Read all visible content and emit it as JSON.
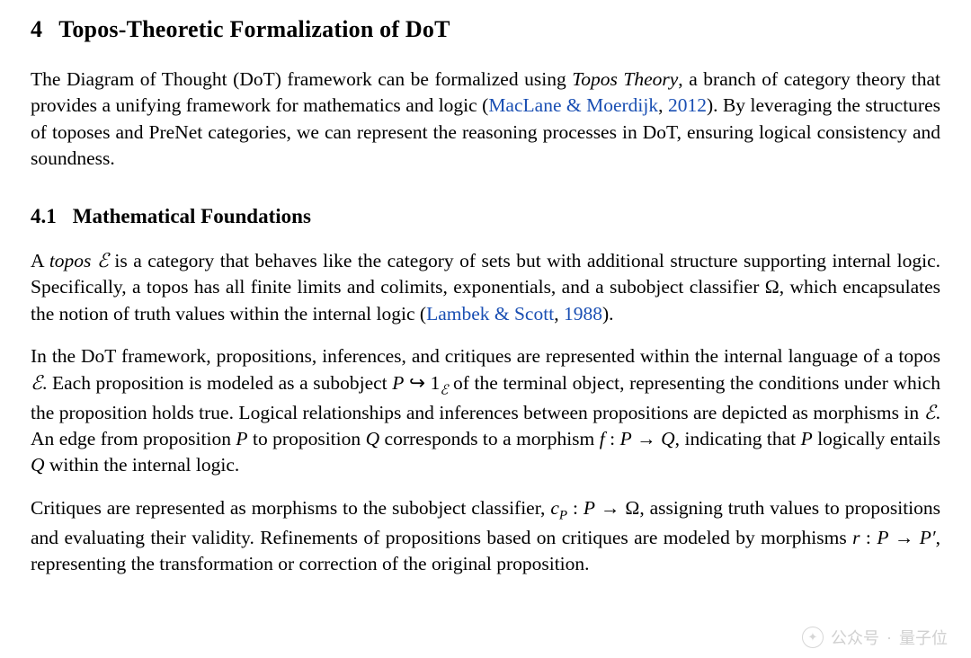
{
  "colors": {
    "text": "#000000",
    "link": "#1a4fb3",
    "background": "#ffffff",
    "watermark": "#c8c8c8"
  },
  "typography": {
    "body_font": "Times New Roman, serif",
    "body_fontsize_pt": 16,
    "heading_fontsize_pt": 19,
    "subheading_fontsize_pt": 17,
    "line_height": 1.37,
    "alignment": "justify"
  },
  "section": {
    "number": "4",
    "title": "Topos-Theoretic Formalization of DoT"
  },
  "intro_paragraph": {
    "run1": "The Diagram of Thought (DoT) framework can be formalized using ",
    "topos_theory_ital": "Topos Theory",
    "run2": ", a branch of category theory that provides a unifying framework for mathematics and logic (",
    "cite1_text": "MacLane & Moerdijk",
    "cite1_sep": ", ",
    "cite1_year": "2012",
    "run3": "). By leveraging the structures of toposes and PreNet categories, we can represent the reasoning processes in DoT, ensuring logical consistency and soundness."
  },
  "subsection": {
    "number": "4.1",
    "title": "Mathematical Foundations"
  },
  "para_A": {
    "r1": "A ",
    "topos_ital": "topos",
    "sp1": " ",
    "E1": "ℰ",
    "r2": " is a category that behaves like the category of sets but with additional structure supporting internal logic. Specifically, a topos has all finite limits and colimits, exponentials, and a subobject classifier ",
    "Omega": "Ω",
    "r3": ", which encapsulates the notion of truth values within the internal logic (",
    "cite2_text": "Lambek & Scott",
    "cite2_sep": ", ",
    "cite2_year": "1988",
    "r4": ")."
  },
  "para_B": {
    "r1": "In the DoT framework, propositions, inferences, and critiques are represented within the internal language of a topos ",
    "E1": "ℰ",
    "r2": ".  Each proposition is modeled as a subobject ",
    "P1": "P",
    "sp1": " ",
    "hook": "↪",
    "sp2": " ",
    "one": "1",
    "Esub": "ℰ",
    "r3": " of the terminal object, representing the conditions under which the proposition holds true. Logical relationships and inferences between propositions are depicted as morphisms in ",
    "E2": "ℰ",
    "r4": ". An edge from proposition ",
    "P2": "P",
    "r5": " to proposition ",
    "Q1": "Q",
    "r6": " corresponds to a morphism ",
    "f": "f",
    "colon1": " : ",
    "P3": "P",
    "arrow1": " → ",
    "Q2": "Q",
    "r7": ", indicating that ",
    "P4": "P",
    "r8": " logically entails ",
    "Q3": "Q",
    "r9": " within the internal logic."
  },
  "para_C": {
    "r1": "Critiques are represented as morphisms to the subobject classifier, ",
    "cP": "c",
    "Psub": "P",
    "colon1": " : ",
    "P1": "P",
    "arrow1": " → ",
    "Omega": "Ω",
    "r2": ", assigning truth values to propositions and evaluating their validity. Refinements of propositions based on critiques are modeled by morphisms ",
    "rvar": "r",
    "colon2": " : ",
    "P2": "P",
    "arrow2": " → ",
    "Pprime": "P′",
    "r3": ", representing the transformation or correction of the original proposition."
  },
  "watermark": {
    "label_left": "公众号",
    "dot": "·",
    "label_right": "量子位"
  }
}
